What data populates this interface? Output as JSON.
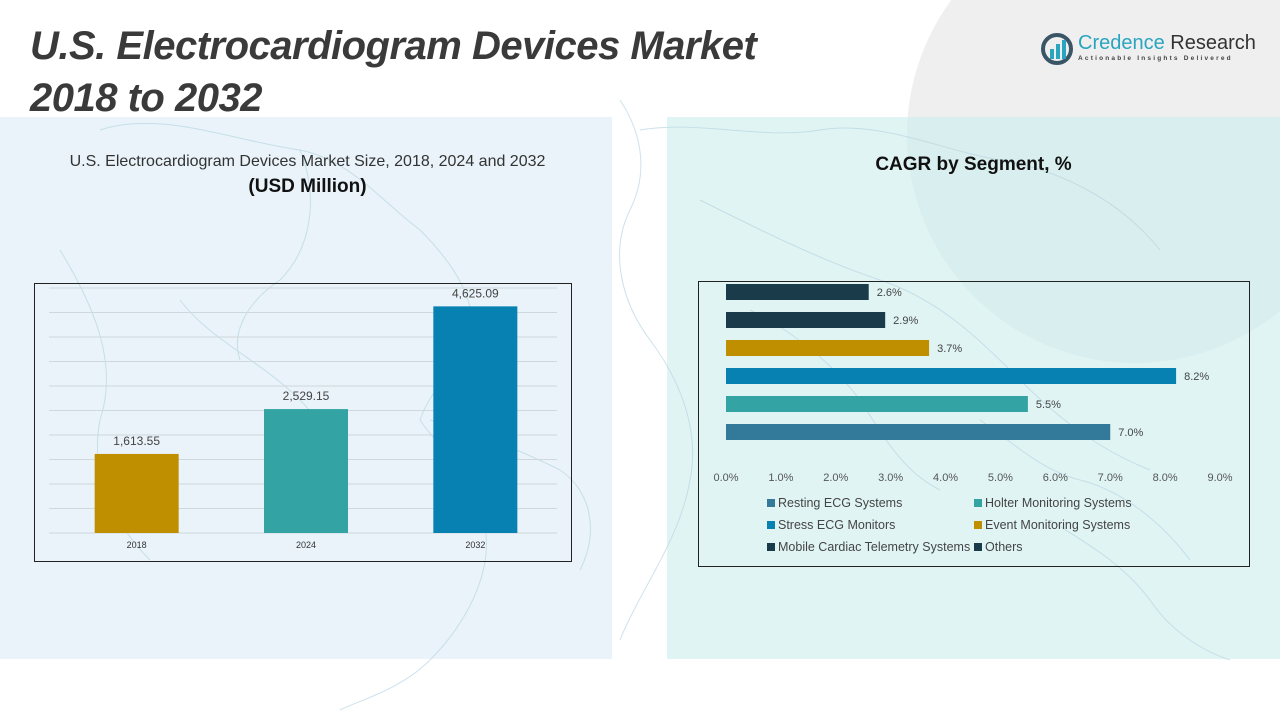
{
  "header": {
    "title_line1": "U.S. Electrocardiogram Devices Market",
    "title_line2": "2018 to 2032"
  },
  "logo": {
    "icon": "bar-chart-circle-logo-icon",
    "name_part1": "Credence",
    "name_part2": "Research",
    "tagline": "Actionable Insights Delivered"
  },
  "left_panel": {
    "subtitle": "U.S. Electrocardiogram Devices Market Size, 2018, 2024 and 2032",
    "unit": "(USD Million)"
  },
  "right_panel": {
    "title": "CAGR by Segment, %"
  },
  "colors": {
    "gold": "#c08f00",
    "teal": "#34a3a3",
    "blue": "#0780b2",
    "steel_blue": "#337a9a",
    "dark_navy": "#193b4a"
  },
  "chart_data": [
    {
      "type": "bar",
      "title": "U.S. Electrocardiogram Devices Market Size, 2018, 2024 and 2032",
      "ylabel": "USD Million",
      "xlabel": "",
      "categories": [
        "2018",
        "2024",
        "2032"
      ],
      "values": [
        1613.55,
        2529.15,
        4625.09
      ],
      "labels": [
        "1,613.55",
        "2,529.15",
        "4,625.09"
      ],
      "colors": [
        "#c08f00",
        "#34a3a3",
        "#0780b2"
      ],
      "ylim": [
        0,
        5000
      ],
      "grid": true,
      "gridlines": 10
    },
    {
      "type": "bar",
      "orientation": "horizontal",
      "title": "CAGR by Segment, %",
      "categories": [
        "Resting ECG Systems",
        "Holter Monitoring Systems",
        "Stress ECG Monitors",
        "Event Monitoring Systems",
        "Mobile Cardiac Telemetry Systems",
        "Others"
      ],
      "values": [
        7.0,
        5.5,
        8.2,
        3.7,
        2.9,
        2.6
      ],
      "labels": [
        "7.0%",
        "5.5%",
        "8.2%",
        "3.7%",
        "2.9%",
        "2.6%"
      ],
      "colors": [
        "#337a9a",
        "#34a3a3",
        "#0780b2",
        "#c08f00",
        "#193b4a",
        "#193b4a"
      ],
      "xlim": [
        0,
        9
      ],
      "xticks": [
        "0.0%",
        "1.0%",
        "2.0%",
        "3.0%",
        "4.0%",
        "5.0%",
        "6.0%",
        "7.0%",
        "8.0%",
        "9.0%"
      ],
      "grid": false,
      "legend_position": "bottom"
    }
  ]
}
